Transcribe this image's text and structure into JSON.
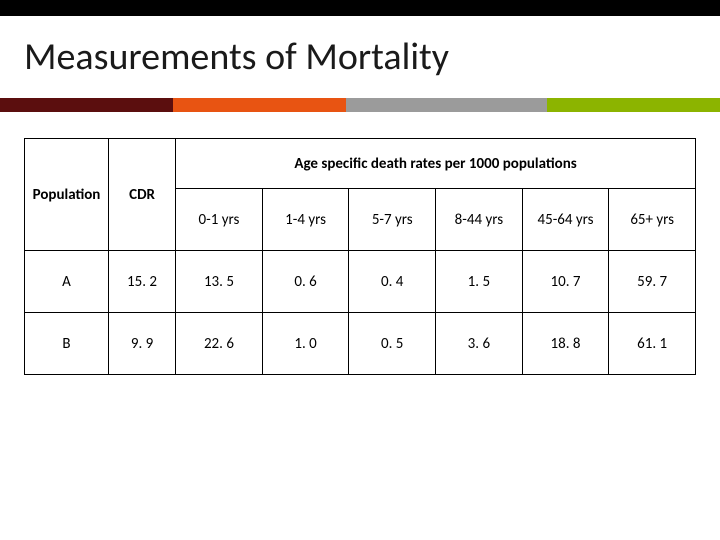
{
  "slide": {
    "title": "Measurements of Mortality",
    "background_color": "#ffffff",
    "top_bar_color": "#000000",
    "stripe_colors": {
      "dark_red": "#5b0e0e",
      "orange": "#e85412",
      "gray": "#9b9b9b",
      "green": "#8cb400"
    }
  },
  "table": {
    "type": "table",
    "border_color": "#000000",
    "font_size": 15,
    "header": {
      "population": "Population",
      "cdr": "CDR",
      "age_group_header": "Age specific death rates per 1000 populations",
      "age_columns": [
        "0-1 yrs",
        "1-4 yrs",
        "5-7 yrs",
        "8-44 yrs",
        "45-64 yrs",
        "65+ yrs"
      ]
    },
    "rows": [
      {
        "population": "A",
        "cdr": "15. 2",
        "values": [
          "13. 5",
          "0. 6",
          "0. 4",
          "1. 5",
          "10. 7",
          "59. 7"
        ]
      },
      {
        "population": "B",
        "cdr": "9. 9",
        "values": [
          "22. 6",
          "1. 0",
          "0. 5",
          "3. 6",
          "18. 8",
          "61. 1"
        ]
      }
    ]
  }
}
